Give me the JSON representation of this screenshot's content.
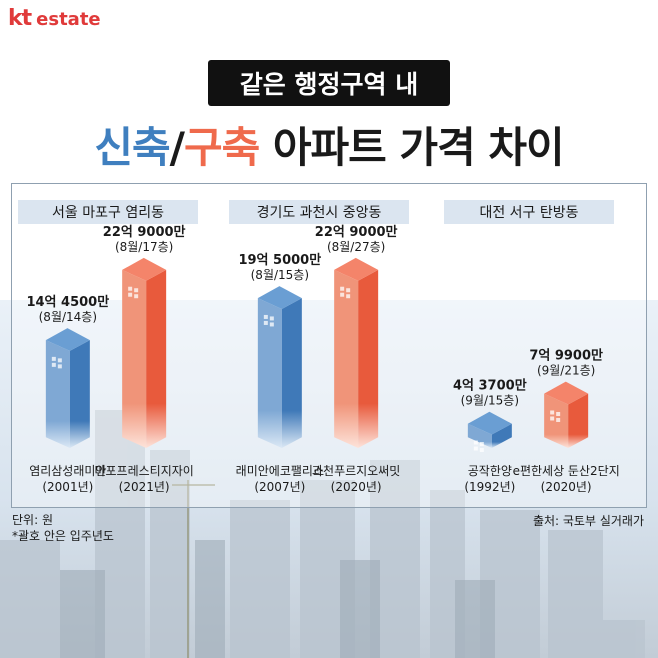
{
  "brand": {
    "logo_kt": "kt",
    "logo_estate": "estate",
    "color": "#e03a3a"
  },
  "header": {
    "subtitle": "같은 행정구역 내",
    "title_new": "신축",
    "title_slash": "/",
    "title_old": "구축",
    "title_rest": " 아파트 가격 차이"
  },
  "notes": {
    "unit": "단위: 원",
    "footnote": "*괄호 안은 입주년도",
    "source": "출처: 국토부 실거래가"
  },
  "colors": {
    "new": "#ef6a4c",
    "old": "#4a86c4"
  },
  "chart_data": {
    "type": "bar",
    "groups": [
      {
        "region": "서울 마포구 염리동",
        "bars": [
          {
            "apartment": "염리삼성래미안",
            "year": "(2001년)",
            "price_label": "14억 4500만",
            "date_floor": "(8월/14층)",
            "value": 14.45,
            "kind": "old"
          },
          {
            "apartment": "마포프레스티지자이",
            "year": "(2021년)",
            "price_label": "22억 9000만",
            "date_floor": "(8월/17층)",
            "value": 22.9,
            "kind": "new"
          }
        ]
      },
      {
        "region": "경기도 과천시 중앙동",
        "bars": [
          {
            "apartment": "래미안에코팰리스",
            "year": "(2007년)",
            "price_label": "19억 5000만",
            "date_floor": "(8월/15층)",
            "value": 19.5,
            "kind": "old"
          },
          {
            "apartment": "과천푸르지오써밋",
            "year": "(2020년)",
            "price_label": "22억 9000만",
            "date_floor": "(8월/27층)",
            "value": 22.9,
            "kind": "new"
          }
        ]
      },
      {
        "region": "대전 서구 탄방동",
        "bars": [
          {
            "apartment": "공작한양",
            "year": "(1992년)",
            "price_label": "4억 3700만",
            "date_floor": "(9월/15층)",
            "value": 4.37,
            "kind": "old"
          },
          {
            "apartment": "e편한세상 둔산2단지",
            "year": "(2020년)",
            "price_label": "7억 9900만",
            "date_floor": "(9월/21층)",
            "value": 7.99,
            "kind": "new"
          }
        ]
      }
    ],
    "unit": "단위: 원",
    "legend": "none",
    "grid": false
  }
}
